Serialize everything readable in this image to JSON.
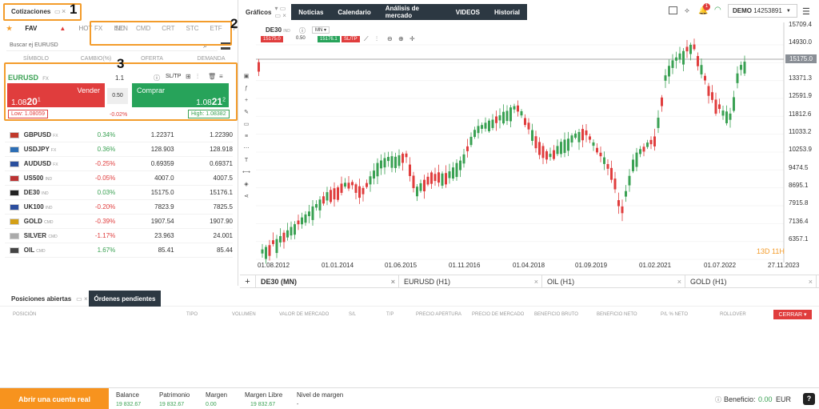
{
  "quotes_panel": {
    "title": "Cotizaciones",
    "tabs": [
      "FAV",
      "HOT",
      "SEN"
    ],
    "categories": [
      "FX",
      "IND",
      "CMD",
      "CRT",
      "STC",
      "ETF",
      "F"
    ],
    "search_placeholder": "Buscar ej EURUSD",
    "columns": [
      "SÍMBOLO",
      "CAMBIO(%)",
      "OFERTA",
      "DEMANDA"
    ],
    "ticket": {
      "symbol": "EURUSD",
      "type": "FX",
      "lot": "1.1",
      "sltp": "SL/TP",
      "sell_label": "Vender",
      "sell_price_small": "1.08",
      "sell_price_big": "20",
      "sell_price_sup": "1",
      "buy_label": "Comprar",
      "buy_price_small": "1.08",
      "buy_price_big": "21",
      "buy_price_sup": "2",
      "spread": "0.50",
      "change": "-0.02%",
      "low": "Low: 1.08059",
      "high": "High: 1.08382"
    },
    "rows": [
      {
        "symbol": "GBPUSD",
        "type": "FX",
        "change": "0.34%",
        "bid": "1.22371",
        "ask": "1.22390",
        "dir": "up"
      },
      {
        "symbol": "USDJPY",
        "type": "FX",
        "change": "0.36%",
        "bid": "128.903",
        "ask": "128.918",
        "dir": "up"
      },
      {
        "symbol": "AUDUSD",
        "type": "FX",
        "change": "-0.25%",
        "bid": "0.69359",
        "ask": "0.69371",
        "dir": "down"
      },
      {
        "symbol": "US500",
        "type": "IND",
        "change": "-0.05%",
        "bid": "4007.0",
        "ask": "4007.5",
        "dir": "down"
      },
      {
        "symbol": "DE30",
        "type": "IND",
        "change": "0.03%",
        "bid": "15175.0",
        "ask": "15176.1",
        "dir": "up"
      },
      {
        "symbol": "UK100",
        "type": "IND",
        "change": "-0.20%",
        "bid": "7823.9",
        "ask": "7825.5",
        "dir": "down"
      },
      {
        "symbol": "GOLD",
        "type": "CMD",
        "change": "-0.39%",
        "bid": "1907.54",
        "ask": "1907.90",
        "dir": "down"
      },
      {
        "symbol": "SILVER",
        "type": "CMD",
        "change": "-1.17%",
        "bid": "23.963",
        "ask": "24.001",
        "dir": "down"
      },
      {
        "symbol": "OIL",
        "type": "CMD",
        "change": "1.67%",
        "bid": "85.41",
        "ask": "85.44",
        "dir": "up"
      }
    ]
  },
  "annotations": [
    "1",
    "2",
    "3"
  ],
  "topnav": {
    "graficos": "Gráficos",
    "items": [
      "Noticias",
      "Calendario",
      "Análisis de mercado",
      "VIDEOS",
      "Historial"
    ]
  },
  "account": {
    "label": "DEMO",
    "number": "14253891",
    "notif_count": "1"
  },
  "chart": {
    "symbol": "DE30",
    "type": "IND",
    "interval": "MN",
    "sell_price": "15175.0",
    "spread": "0.50",
    "buy_price": "15176.1",
    "sltp": "SL/TP",
    "current_price": "15175.0",
    "countdown": "13D 11H",
    "y_ticks": [
      "15709.4",
      "14930.0",
      "14150.7",
      "13371.3",
      "12591.9",
      "11812.6",
      "11033.2",
      "10253.9",
      "9474.5",
      "8695.1",
      "7915.8",
      "7136.4",
      "6357.1"
    ],
    "x_ticks": [
      "01.08.2012",
      "01.01.2014",
      "01.06.2015",
      "01.11.2016",
      "01.04.2018",
      "01.09.2019",
      "01.02.2021",
      "01.07.2022",
      "27.11.2023"
    ]
  },
  "chart_tabs": [
    "DE30 (MN)",
    "EURUSD (H1)",
    "OIL (H1)",
    "GOLD (H1)"
  ],
  "positions": {
    "tabs": [
      "Posiciones abiertas",
      "Órdenes pendientes"
    ],
    "columns": [
      "POSICIÓN",
      "TIPO",
      "VOLUMEN",
      "VALOR DE MERCADO",
      "S/L",
      "T/P",
      "PRECIO APERTURA",
      "PRECIO DE MERCADO",
      "BENEFICIO BRUTO",
      "BENEFICIO NETO",
      "P/L % NETO",
      "ROLLOVER"
    ],
    "close_button": "CERRAR"
  },
  "footer": {
    "open_account": "Abrir una cuenta real",
    "balance_label": "Balance",
    "balance": "19 832.67",
    "equity_label": "Patrimonio",
    "equity": "19 832.67",
    "margin_label": "Margen",
    "margin": "0.00",
    "free_margin_label": "Margen Libre",
    "free_margin": "19 832.67",
    "margin_level_label": "Nivel de margen",
    "margin_level": "-",
    "profit_label": "Beneficio:",
    "profit": "0.00",
    "currency": "EUR",
    "help": "?"
  },
  "colors": {
    "up": "#3aa153",
    "down": "#e03d3d",
    "orange": "#f7931e",
    "dark": "#2c3842",
    "accent": "#f39c2b"
  }
}
